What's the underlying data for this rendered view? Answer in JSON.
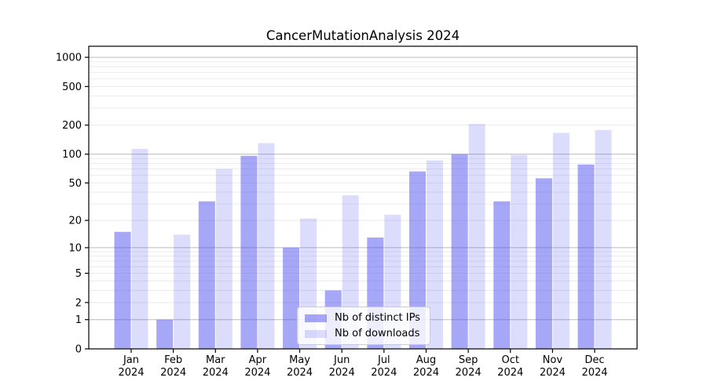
{
  "chart_data": {
    "type": "bar",
    "title": "CancerMutationAnalysis 2024",
    "months": [
      "Jan",
      "Feb",
      "Mar",
      "Apr",
      "May",
      "Jun",
      "Jul",
      "Aug",
      "Sep",
      "Oct",
      "Nov",
      "Dec"
    ],
    "year_label": "2024",
    "series": [
      {
        "name": "Nb of distinct IPs",
        "fill": "rgba(80,80,240,0.50)",
        "approx_hex": "#a8a8f4",
        "values": [
          15,
          1,
          32,
          96,
          10,
          3,
          13,
          66,
          100,
          32,
          56,
          78
        ]
      },
      {
        "name": "Nb of downloads",
        "fill": "rgba(80,80,240,0.20)",
        "approx_hex": "#dcdcf9",
        "values": [
          113,
          14,
          70,
          130,
          21,
          37,
          23,
          86,
          205,
          98,
          166,
          178
        ]
      }
    ],
    "yscale": "log1p",
    "yticks": [
      0,
      1,
      2,
      5,
      10,
      20,
      50,
      100,
      200,
      500,
      1000
    ],
    "ylim": [
      0,
      1300
    ],
    "grid": {
      "major_at": [
        1,
        10,
        100,
        1000
      ],
      "minor_multiples": [
        2,
        3,
        4,
        5,
        6,
        7,
        8,
        9
      ],
      "major_color": "#bbbbbb",
      "minor_color": "#e9e9e9"
    },
    "legend_position": "lower center",
    "axis_color": "#000000",
    "text_color": "#000000"
  }
}
